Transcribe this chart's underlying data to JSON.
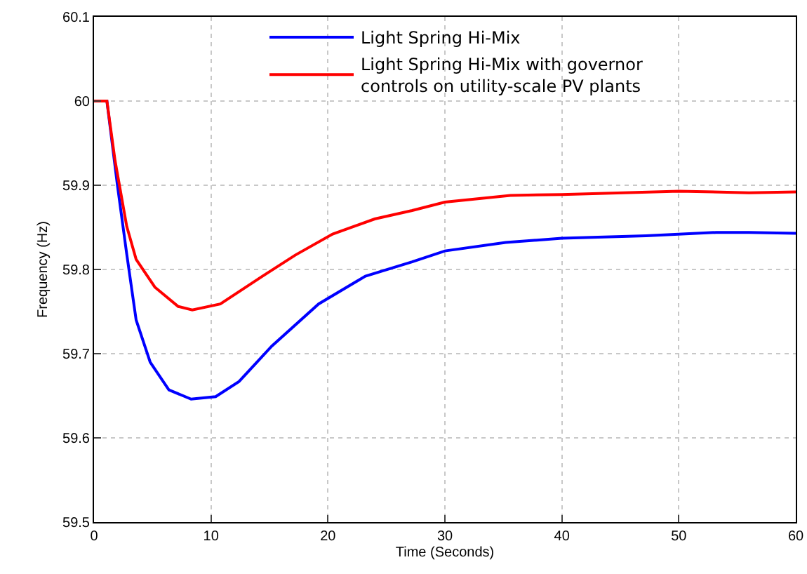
{
  "chart_data": {
    "type": "line",
    "xlabel": "Time (Seconds)",
    "ylabel": "Frequency (Hz)",
    "xlim": [
      0,
      60
    ],
    "xticks": [
      0,
      10,
      20,
      30,
      40,
      50,
      60
    ],
    "ylim": [
      59.5,
      60.1
    ],
    "yticks": [
      59.5,
      59.6,
      59.7,
      59.8,
      59.9,
      60,
      60.1
    ],
    "grid": true,
    "legend": "top",
    "line_style": "solid",
    "marker": "none",
    "series": [
      {
        "name": "Light Spring Hi-Mix",
        "color": "#0000ff",
        "x": [
          0,
          1.1,
          2.0,
          2.8,
          3.6,
          4.8,
          6.4,
          8.3,
          10.4,
          12.4,
          15.2,
          19.2,
          23.2,
          27.2,
          30,
          35.2,
          40,
          47.2,
          53.2,
          56,
          60
        ],
        "values": [
          60,
          60,
          59.9,
          59.818,
          59.74,
          59.69,
          59.657,
          59.646,
          59.649,
          59.667,
          59.709,
          59.759,
          59.792,
          59.809,
          59.822,
          59.832,
          59.837,
          59.84,
          59.844,
          59.844,
          59.843
        ]
      },
      {
        "name": "Light Spring Hi-Mix with governor controls on utility-scale PV plants",
        "color": "#ff0000",
        "x": [
          0,
          1.1,
          1.8,
          2.8,
          3.6,
          5.2,
          7.2,
          8.4,
          10.8,
          14.4,
          17.2,
          20.4,
          24,
          27.2,
          30,
          35.6,
          40,
          50,
          56,
          60
        ],
        "values": [
          60,
          60,
          59.929,
          59.851,
          59.812,
          59.779,
          59.756,
          59.752,
          59.759,
          59.792,
          59.817,
          59.842,
          59.86,
          59.87,
          59.88,
          59.888,
          59.889,
          59.893,
          59.891,
          59.892
        ]
      }
    ]
  }
}
